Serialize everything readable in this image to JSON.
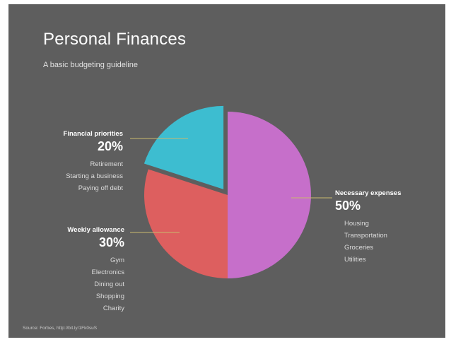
{
  "title": "Personal Finances",
  "subtitle": "A basic budgeting guideline",
  "source": "Source: Forbes,   http://bit.ly/1Fk0suS",
  "chart_data": {
    "type": "pie",
    "slices": [
      {
        "label": "Necessary expenses",
        "value": 50,
        "percent_label": "50%",
        "color": "#c66fca",
        "items": [
          "Housing",
          "Transportation",
          "Groceries",
          "Utilities"
        ]
      },
      {
        "label": "Weekly allowance",
        "value": 30,
        "percent_label": "30%",
        "color": "#dd5f5f",
        "items": [
          "Gym",
          "Electronics",
          "Dining out",
          "Shopping",
          "Charity"
        ]
      },
      {
        "label": "Financial priorities",
        "value": 20,
        "percent_label": "20%",
        "color": "#3dbdd0",
        "exploded": true,
        "items": [
          "Retirement",
          "Starting a business",
          "Paying off debt"
        ]
      }
    ],
    "colors": {
      "background": "#5e5e5e",
      "leader_line": "#c9b96e"
    }
  }
}
